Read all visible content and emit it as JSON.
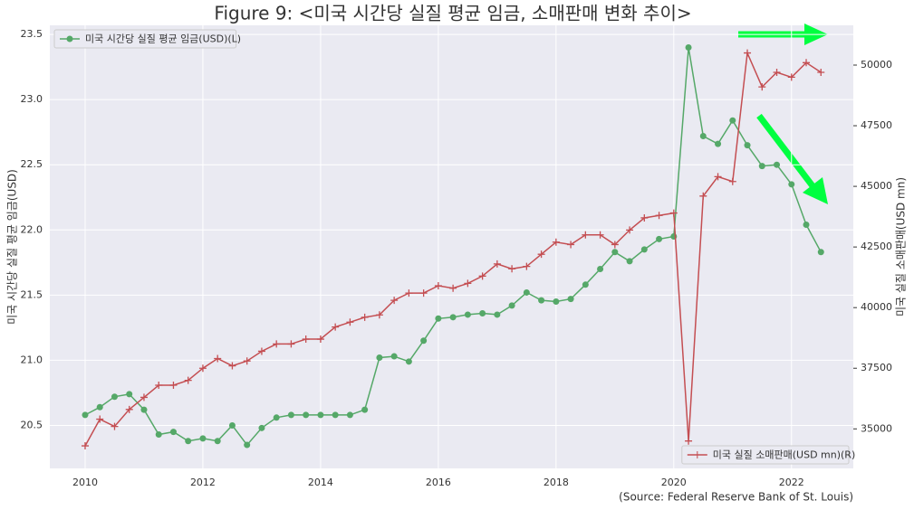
{
  "chart_data": {
    "type": "line",
    "title": "Figure 9: <미국 시간당 실질 평균 임금, 소매판매 변화 추이>",
    "ylabel": "미국 시간당 실질 평균 임금(USD)",
    "y2label": "미국 실질 소매판매(USD mn)",
    "source": "(Source: Federal Reserve Bank of St. Louis)",
    "x": [
      2010,
      2010.25,
      2010.5,
      2010.75,
      2011,
      2011.25,
      2011.5,
      2011.75,
      2012,
      2012.25,
      2012.5,
      2012.75,
      2013,
      2013.25,
      2013.5,
      2013.75,
      2014,
      2014.25,
      2014.5,
      2014.75,
      2015,
      2015.25,
      2015.5,
      2015.75,
      2016,
      2016.25,
      2016.5,
      2016.75,
      2017,
      2017.25,
      2017.5,
      2017.75,
      2018,
      2018.25,
      2018.5,
      2018.75,
      2019,
      2019.25,
      2019.5,
      2019.75,
      2020,
      2020.25,
      2020.5,
      2020.75,
      2021,
      2021.25,
      2021.5,
      2021.75,
      2022,
      2022.25,
      2022.5
    ],
    "series": [
      {
        "name": "미국 시간당 실질 평균 임금(USD)(L)",
        "color": "#55a868",
        "marker": "o",
        "legend": "upper left",
        "values": [
          20.58,
          20.64,
          20.72,
          20.74,
          20.62,
          20.43,
          20.45,
          20.38,
          20.4,
          20.38,
          20.5,
          20.35,
          20.48,
          20.56,
          20.58,
          20.58,
          20.58,
          20.58,
          20.58,
          20.62,
          21.02,
          21.03,
          20.99,
          21.15,
          21.32,
          21.33,
          21.35,
          21.36,
          21.35,
          21.42,
          21.52,
          21.46,
          21.45,
          21.47,
          21.58,
          21.7,
          21.83,
          21.76,
          21.85,
          21.93,
          21.95,
          23.4,
          22.72,
          22.66,
          22.84,
          22.65,
          22.49,
          22.5,
          22.35,
          22.04,
          21.83
        ]
      },
      {
        "name": "미국 실질 소매판매(USD mn)(R)",
        "color": "#c44e52",
        "marker": "+",
        "axis": "y2",
        "legend": "lower right",
        "values": [
          34300,
          35400,
          35100,
          35800,
          36300,
          36800,
          36800,
          37000,
          37500,
          37900,
          37600,
          37800,
          38200,
          38500,
          38500,
          38700,
          38700,
          39200,
          39400,
          39600,
          39700,
          40300,
          40600,
          40600,
          40900,
          40800,
          41000,
          41300,
          41800,
          41600,
          41700,
          42200,
          42700,
          42600,
          43000,
          43000,
          42600,
          43200,
          43700,
          43800,
          43900,
          34500,
          44600,
          45400,
          45200,
          50500,
          49100,
          49700,
          49500,
          50100,
          49700
        ]
      }
    ],
    "xlim": [
      2009.4,
      2023.05
    ],
    "xticks": [
      2010,
      2012,
      2014,
      2016,
      2018,
      2020,
      2022
    ],
    "ylim": [
      20.17,
      23.57
    ],
    "yticks": [
      {
        "value": 20.5,
        "label": "20.5"
      },
      {
        "value": 21,
        "label": "21.0"
      },
      {
        "value": 21.5,
        "label": "21.5"
      },
      {
        "value": 22,
        "label": "22.0"
      },
      {
        "value": 22.5,
        "label": "22.5"
      },
      {
        "value": 23,
        "label": "23.0"
      },
      {
        "value": 23.5,
        "label": "23.5"
      }
    ],
    "y2lim": [
      33370,
      51640
    ],
    "y2ticks": [
      35000,
      37500,
      40000,
      42500,
      45000,
      47500,
      50000
    ],
    "grid": true
  }
}
